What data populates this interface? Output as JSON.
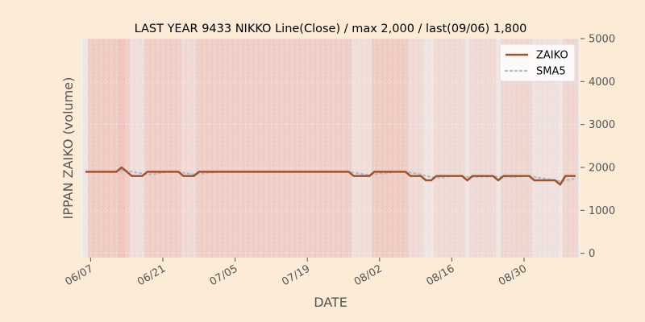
{
  "chart_data": {
    "type": "line",
    "title": "LAST YEAR 9433 NIKKO Line(Close) / max 2,000 / last(09/06) 1,800",
    "xlabel": "DATE",
    "ylabel": "IPPAN ZAIKO (volume)",
    "y_axis_side": "right",
    "ylim": [
      -100,
      5000
    ],
    "yticks": [
      0,
      1000,
      2000,
      3000,
      4000,
      5000
    ],
    "ytick_labels": [
      "0",
      "1000",
      "2000",
      "3000",
      "4000",
      "5000"
    ],
    "xticks": [
      "06/07",
      "06/21",
      "07/05",
      "07/19",
      "08/02",
      "08/16",
      "08/30"
    ],
    "grid": true,
    "legend": "top-right",
    "x_start_label": "06/06",
    "x_end_label": "09/06",
    "colors": {
      "zaiko": "#a0522d",
      "sma5": "#a9bcd0",
      "background": "#fbebd7",
      "plot_background": "#f0f0f0"
    },
    "series": [
      {
        "name": "ZAIKO",
        "style": "solid",
        "values": [
          1900,
          1900,
          1900,
          1900,
          1900,
          1900,
          1900,
          2000,
          1900,
          1800,
          1800,
          1800,
          1900,
          1900,
          1900,
          1900,
          1900,
          1900,
          1900,
          1800,
          1800,
          1800,
          1900,
          1900,
          1900,
          1900,
          1900,
          1900,
          1900,
          1900,
          1900,
          1900,
          1900,
          1900,
          1900,
          1900,
          1900,
          1900,
          1900,
          1900,
          1900,
          1900,
          1900,
          1900,
          1900,
          1900,
          1900,
          1900,
          1900,
          1900,
          1900,
          1900,
          1800,
          1800,
          1800,
          1800,
          1900,
          1900,
          1900,
          1900,
          1900,
          1900,
          1900,
          1800,
          1800,
          1800,
          1700,
          1700,
          1800,
          1800,
          1800,
          1800,
          1800,
          1800,
          1700,
          1800,
          1800,
          1800,
          1800,
          1800,
          1700,
          1800,
          1800,
          1800,
          1800,
          1800,
          1800,
          1700,
          1700,
          1700,
          1700,
          1700,
          1600,
          1800,
          1800,
          1800
        ]
      },
      {
        "name": "SMA5",
        "style": "dotted",
        "values": [
          null,
          null,
          null,
          null,
          1900,
          1900,
          1900,
          1920,
          1920,
          1900,
          1880,
          1860,
          1840,
          1840,
          1860,
          1880,
          1900,
          1900,
          1900,
          1880,
          1860,
          1840,
          1860,
          1860,
          1880,
          1880,
          1900,
          1900,
          1900,
          1900,
          1900,
          1900,
          1900,
          1900,
          1900,
          1900,
          1900,
          1900,
          1900,
          1900,
          1900,
          1900,
          1900,
          1900,
          1900,
          1900,
          1900,
          1900,
          1900,
          1900,
          1900,
          1900,
          1880,
          1860,
          1840,
          1820,
          1840,
          1860,
          1860,
          1880,
          1900,
          1900,
          1900,
          1880,
          1860,
          1840,
          1800,
          1780,
          1760,
          1760,
          1780,
          1800,
          1800,
          1800,
          1780,
          1780,
          1780,
          1780,
          1780,
          1800,
          1780,
          1780,
          1780,
          1780,
          1780,
          1800,
          1800,
          1780,
          1760,
          1740,
          1720,
          1700,
          1680,
          1700,
          1720,
          1740
        ]
      }
    ],
    "shaded_band_intensity": [
      0.1,
      0.8,
      0.8,
      0.8,
      0.8,
      0.8,
      0.8,
      1.0,
      0.7,
      0.3,
      0.3,
      0.3,
      0.7,
      0.7,
      0.7,
      0.7,
      0.7,
      0.7,
      0.7,
      0.4,
      0.4,
      0.4,
      0.7,
      0.7,
      0.7,
      0.7,
      0.7,
      0.7,
      0.7,
      0.7,
      0.7,
      0.7,
      0.7,
      0.7,
      0.7,
      0.7,
      0.7,
      0.7,
      0.7,
      0.7,
      0.7,
      0.7,
      0.7,
      0.7,
      0.7,
      0.7,
      0.7,
      0.7,
      0.7,
      0.7,
      0.7,
      0.7,
      0.3,
      0.3,
      0.3,
      0.3,
      0.8,
      0.8,
      0.8,
      0.8,
      0.8,
      0.8,
      0.8,
      0.4,
      0.4,
      0.4,
      0.1,
      0.1,
      0.4,
      0.4,
      0.4,
      0.4,
      0.4,
      0.4,
      0.1,
      0.4,
      0.4,
      0.4,
      0.4,
      0.4,
      0.1,
      0.5,
      0.5,
      0.5,
      0.5,
      0.5,
      0.5,
      0.2,
      0.2,
      0.2,
      0.2,
      0.2,
      0.1,
      0.5,
      0.5,
      0.5
    ]
  }
}
